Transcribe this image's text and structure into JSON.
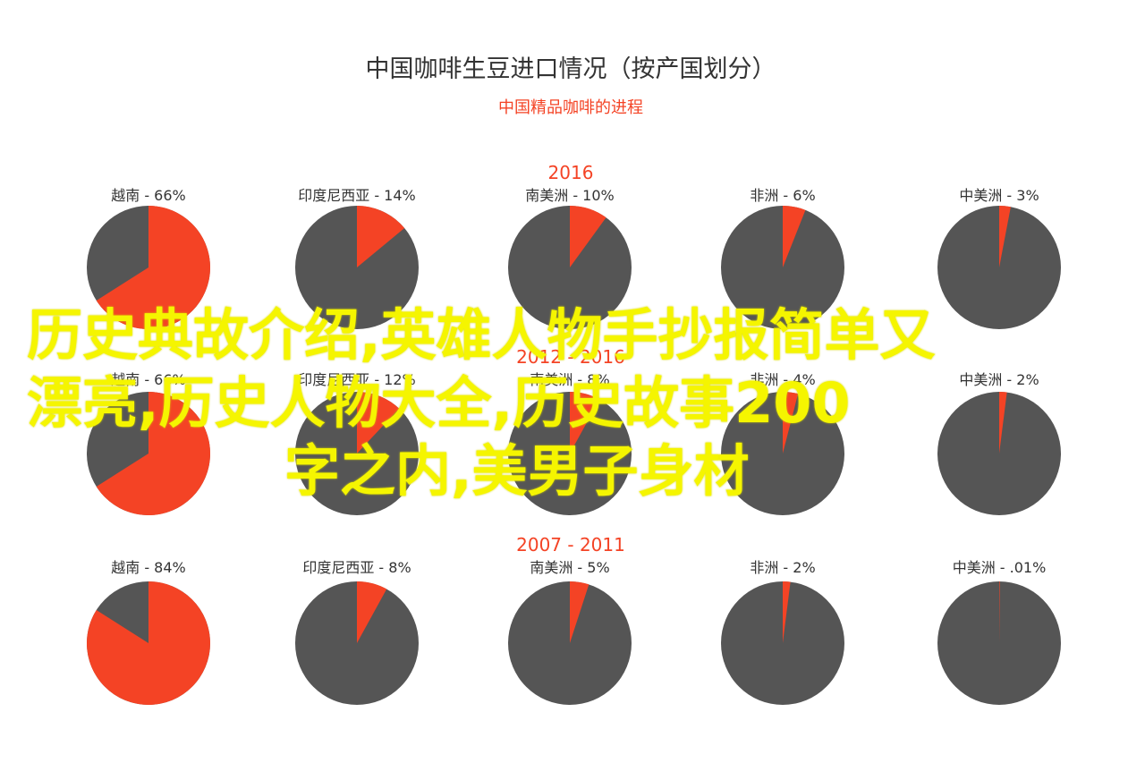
{
  "colors": {
    "accent": "#f44325",
    "dark": "#555555",
    "title": "#333333",
    "overlay": "#f5f500"
  },
  "chart_data": {
    "type": "pie",
    "title": "中国咖啡生豆进口情况（按产国划分）",
    "subtitle": "中国精品咖啡的进程",
    "groups": [
      {
        "period": "2016",
        "slices": [
          {
            "name": "越南",
            "value_label": "- 66%",
            "value": 66
          },
          {
            "name": "印度尼西亚",
            "value_label": "- 14%",
            "value": 14
          },
          {
            "name": "南美洲",
            "value_label": "- 10%",
            "value": 10
          },
          {
            "name": "非洲",
            "value_label": "- 6%",
            "value": 6
          },
          {
            "name": "中美洲",
            "value_label": "- 3%",
            "value": 3
          }
        ]
      },
      {
        "period": "2012 - 2016",
        "slices": [
          {
            "name": "越南",
            "value_label": "- 66%",
            "value": 66
          },
          {
            "name": "印度尼西亚",
            "value_label": "- 12%",
            "value": 12
          },
          {
            "name": "南美洲",
            "value_label": "- 8%",
            "value": 8
          },
          {
            "name": "非洲",
            "value_label": "- 4%",
            "value": 4
          },
          {
            "name": "中美洲",
            "value_label": "- 2%",
            "value": 2
          }
        ]
      },
      {
        "period": "2007 - 2011",
        "slices": [
          {
            "name": "越南",
            "value_label": "- 84%",
            "value": 84
          },
          {
            "name": "印度尼西亚",
            "value_label": "- 8%",
            "value": 8
          },
          {
            "name": "南美洲",
            "value_label": "- 5%",
            "value": 5
          },
          {
            "name": "非洲",
            "value_label": "- 2%",
            "value": 2
          },
          {
            "name": "中美洲",
            "value_label": "- .01%",
            "value": 0.01
          }
        ]
      }
    ]
  },
  "overlay": {
    "line1": "历史典故介绍,英雄人物手抄报简单又",
    "line2": "漂亮,历史人物大全,历史故事200",
    "line3": "字之内,美男子身材"
  }
}
